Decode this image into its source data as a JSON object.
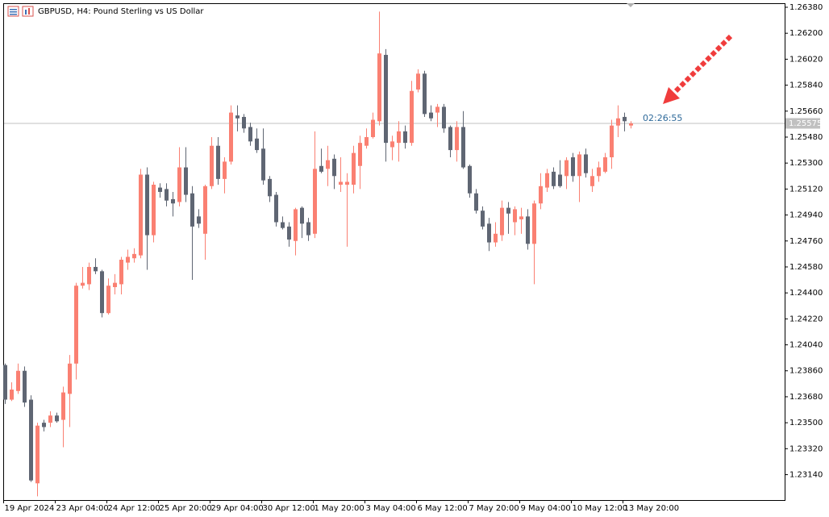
{
  "chart_data": {
    "type": "candlestick",
    "title": "GBPUSD, H4: Pound Sterling vs US Dollar",
    "timer": "02:26:55",
    "current_price": 1.25575,
    "up_color": "#fa8072",
    "down_color": "#5f6673",
    "categories": [
      "19 Apr 2024",
      null,
      null,
      null,
      null,
      null,
      null,
      null,
      "23 Apr 04:00",
      null,
      null,
      null,
      null,
      null,
      null,
      null,
      "24 Apr 12:00",
      null,
      null,
      null,
      null,
      null,
      null,
      null,
      "25 Apr 20:00",
      null,
      null,
      null,
      null,
      null,
      null,
      null,
      "29 Apr 04:00",
      null,
      null,
      null,
      null,
      null,
      null,
      null,
      "30 Apr 12:00",
      null,
      null,
      null,
      null,
      null,
      null,
      null,
      "1 May 20:00",
      null,
      null,
      null,
      null,
      null,
      null,
      null,
      "3 May 04:00",
      null,
      null,
      null,
      null,
      null,
      null,
      null,
      "6 May 12:00",
      null,
      null,
      null,
      null,
      null,
      null,
      null,
      "7 May 20:00",
      null,
      null,
      null,
      null,
      null,
      null,
      null,
      "9 May 04:00",
      null,
      null,
      null,
      null,
      null,
      null,
      null,
      "10 May 12:00",
      null,
      null,
      null,
      null,
      null,
      null,
      null,
      "13 May 20:00",
      null
    ],
    "open": [
      1.239,
      1.2366,
      1.2372,
      1.2386,
      1.2366,
      1.2308,
      1.235,
      1.235,
      1.2355,
      1.2352,
      1.237,
      1.2391,
      1.2445,
      1.2446,
      1.2458,
      1.2455,
      1.2426,
      1.2444,
      1.2446,
      1.2461,
      1.2464,
      1.2466,
      1.2522,
      1.248,
      1.2513,
      1.2512,
      1.2505,
      1.2503,
      1.2527,
      1.2509,
      1.2493,
      1.2481,
      1.2514,
      1.2542,
      1.2519,
      1.2531,
      1.2563,
      1.2562,
      1.2555,
      1.2547,
      1.254,
      1.2519,
      1.2508,
      1.2489,
      1.2486,
      1.2476,
      1.2499,
      1.2489,
      1.2481,
      1.2528,
      1.2526,
      1.2533,
      1.2515,
      1.2515,
      1.2515,
      1.2528,
      1.2542,
      1.2548,
      1.2559,
      1.2605,
      1.2541,
      1.2544,
      1.2552,
      1.2544,
      1.2581,
      1.2592,
      1.2565,
      1.2565,
      1.2569,
      1.2555,
      1.2539,
      1.2555,
      1.2528,
      1.2509,
      1.2497,
      1.2488,
      1.2475,
      1.248,
      1.2499,
      1.2489,
      1.2491,
      1.2493,
      1.2474,
      1.2502,
      1.2513,
      1.2524,
      1.2522,
      1.2521,
      1.2534,
      1.2521,
      1.2536,
      1.2514,
      1.2521,
      1.2524,
      1.2534,
      1.2556,
      1.2562,
      1.2556
    ],
    "high": [
      1.2391,
      1.2378,
      1.2391,
      1.2389,
      1.2369,
      1.235,
      1.2352,
      1.2358,
      1.2357,
      1.2375,
      1.2397,
      1.2447,
      1.2458,
      1.2461,
      1.2464,
      1.2456,
      1.245,
      1.2453,
      1.2465,
      1.247,
      1.2471,
      1.2526,
      1.2527,
      1.2517,
      1.2516,
      1.2516,
      1.251,
      1.2541,
      1.2541,
      1.2514,
      1.2498,
      1.2515,
      1.2548,
      1.2548,
      1.2534,
      1.257,
      1.257,
      1.2564,
      1.2558,
      1.2554,
      1.2554,
      1.2521,
      1.251,
      1.2493,
      1.2489,
      1.2499,
      1.25,
      1.2492,
      1.2552,
      1.254,
      1.2542,
      1.2536,
      1.2534,
      1.2523,
      1.2542,
      1.2549,
      1.2554,
      1.2565,
      1.2635,
      1.2609,
      1.2549,
      1.2559,
      1.2556,
      1.2587,
      1.2595,
      1.2594,
      1.257,
      1.2571,
      1.2571,
      1.2556,
      1.2559,
      1.2566,
      1.2529,
      1.2512,
      1.25,
      1.2492,
      1.2489,
      1.2504,
      1.2503,
      1.25,
      1.2499,
      1.2498,
      1.2504,
      1.2523,
      1.2526,
      1.2527,
      1.2532,
      1.2534,
      1.2537,
      1.2538,
      1.254,
      1.2526,
      1.2531,
      1.2537,
      1.256,
      1.257,
      1.2565,
      1.2559
    ],
    "low": [
      1.2363,
      1.2365,
      1.237,
      1.2361,
      1.2309,
      1.2299,
      1.2344,
      1.2347,
      1.235,
      1.2333,
      1.2347,
      1.238,
      1.2443,
      1.2442,
      1.2453,
      1.2423,
      1.2425,
      1.2439,
      1.2439,
      1.2456,
      1.2461,
      1.2464,
      1.2456,
      1.2475,
      1.2506,
      1.25,
      1.2493,
      1.25,
      1.2503,
      1.2449,
      1.2485,
      1.2463,
      1.2512,
      1.2515,
      1.2509,
      1.2529,
      1.2552,
      1.2551,
      1.2542,
      1.2537,
      1.2515,
      1.2503,
      1.2486,
      1.2484,
      1.2472,
      1.2466,
      1.2478,
      1.2476,
      1.2478,
      1.2523,
      1.2514,
      1.2512,
      1.251,
      1.2472,
      1.2509,
      1.2512,
      1.254,
      1.2547,
      1.2556,
      1.2531,
      1.2532,
      1.2531,
      1.254,
      1.2542,
      1.2579,
      1.2562,
      1.2559,
      1.2555,
      1.2551,
      1.2534,
      1.2531,
      1.2526,
      1.2506,
      1.2495,
      1.2484,
      1.2469,
      1.2472,
      1.2476,
      1.2481,
      1.248,
      1.2481,
      1.247,
      1.2446,
      1.2498,
      1.251,
      1.2512,
      1.2513,
      1.2512,
      1.2517,
      1.2503,
      1.252,
      1.251,
      1.2517,
      1.2523,
      1.2526,
      1.2548,
      1.2552,
      1.2554
    ],
    "close": [
      1.2366,
      1.2373,
      1.2386,
      1.2364,
      1.231,
      1.2348,
      1.2347,
      1.2355,
      1.2351,
      1.2371,
      1.2391,
      1.2445,
      1.2447,
      1.2458,
      1.2455,
      1.2426,
      1.2445,
      1.2447,
      1.2463,
      1.2465,
      1.2467,
      1.2522,
      1.248,
      1.2515,
      1.251,
      1.2504,
      1.2502,
      1.2527,
      1.2508,
      1.2486,
      1.2488,
      1.2514,
      1.2542,
      1.2519,
      1.2531,
      1.2565,
      1.2561,
      1.2554,
      1.2545,
      1.2539,
      1.2518,
      1.2507,
      1.2489,
      1.2485,
      1.2477,
      1.2498,
      1.2488,
      1.248,
      1.2526,
      1.2524,
      1.2532,
      1.2521,
      1.2517,
      1.2517,
      1.2537,
      1.2544,
      1.2548,
      1.256,
      1.2606,
      1.2544,
      1.2545,
      1.2552,
      1.2544,
      1.258,
      1.2592,
      1.2564,
      1.2561,
      1.2569,
      1.2554,
      1.2539,
      1.2555,
      1.2527,
      1.2509,
      1.2497,
      1.2486,
      1.2475,
      1.2481,
      1.2499,
      1.2495,
      1.2498,
      1.2493,
      1.2474,
      1.2502,
      1.2514,
      1.2523,
      1.2514,
      1.2514,
      1.2532,
      1.2521,
      1.2536,
      1.2523,
      1.2521,
      1.2527,
      1.2534,
      1.2556,
      1.2561,
      1.2559,
      1.25575
    ],
    "ylim": [
      1.22964,
      1.26408
    ],
    "yticks": [
      {
        "value": 1.2638,
        "label": "1.26380"
      },
      {
        "value": 1.262,
        "label": "1.26200"
      },
      {
        "value": 1.2602,
        "label": "1.26020"
      },
      {
        "value": 1.2584,
        "label": "1.25840"
      },
      {
        "value": 1.2566,
        "label": "1.25660"
      },
      {
        "value": 1.2548,
        "label": "1.25480"
      },
      {
        "value": 1.253,
        "label": "1.25300"
      },
      {
        "value": 1.2512,
        "label": "1.25120"
      },
      {
        "value": 1.2494,
        "label": "1.24940"
      },
      {
        "value": 1.2476,
        "label": "1.24760"
      },
      {
        "value": 1.2458,
        "label": "1.24580"
      },
      {
        "value": 1.244,
        "label": "1.24400"
      },
      {
        "value": 1.2422,
        "label": "1.24220"
      },
      {
        "value": 1.2404,
        "label": "1.24040"
      },
      {
        "value": 1.2386,
        "label": "1.23860"
      },
      {
        "value": 1.2368,
        "label": "1.23680"
      },
      {
        "value": 1.235,
        "label": "1.23500"
      },
      {
        "value": 1.2332,
        "label": "1.23320"
      },
      {
        "value": 1.2314,
        "label": "1.23140"
      }
    ],
    "grid": false
  }
}
